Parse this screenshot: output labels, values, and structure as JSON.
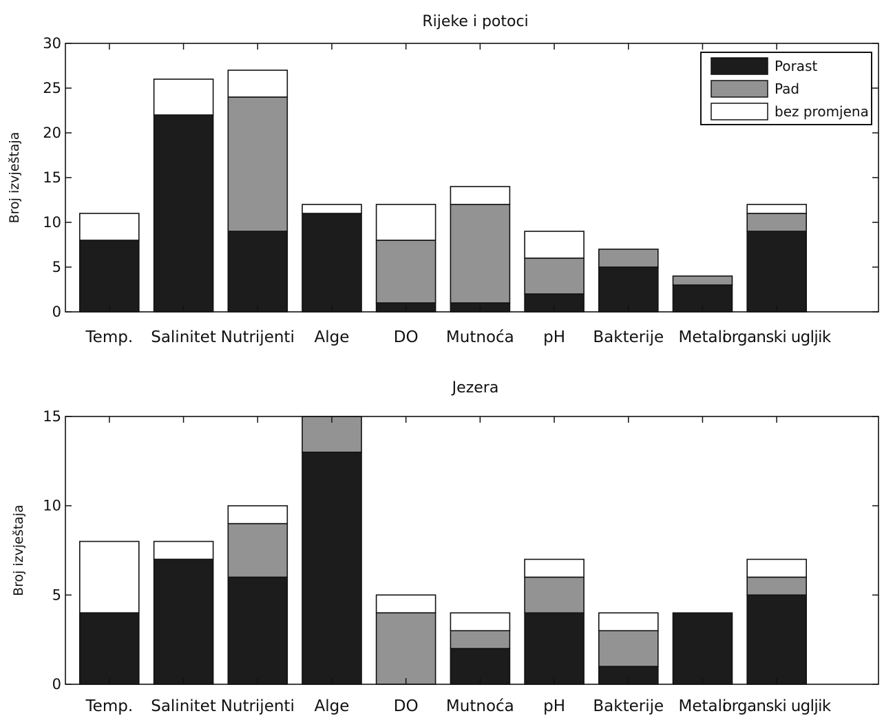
{
  "chart_data": [
    {
      "type": "bar",
      "stacked": true,
      "title": "Rijeke i potoci",
      "xlabel": "",
      "ylabel": "Broj izvještaja",
      "ylim": [
        0,
        30
      ],
      "yticks": [
        0,
        5,
        10,
        15,
        20,
        25,
        30
      ],
      "grid": false,
      "legend_position": "top-right",
      "categories": [
        "Temp.",
        "Salinitet",
        "Nutrijenti",
        "Alge",
        "DO",
        "Mutnoća",
        "pH",
        "Bakterije",
        "Metali",
        "organski ugljik"
      ],
      "series": [
        {
          "name": "Porast",
          "color": "#1c1c1c",
          "values": [
            8,
            22,
            9,
            11,
            1,
            1,
            2,
            5,
            3,
            9
          ]
        },
        {
          "name": "Pad",
          "color": "#939393",
          "values": [
            0,
            0,
            15,
            0,
            7,
            11,
            4,
            2,
            1,
            2
          ]
        },
        {
          "name": "bez promjena",
          "color": "#ffffff",
          "values": [
            3,
            4,
            3,
            1,
            4,
            2,
            3,
            0,
            0,
            1
          ]
        }
      ]
    },
    {
      "type": "bar",
      "stacked": true,
      "title": "Jezera",
      "xlabel": "",
      "ylabel": "Broj izvještaja",
      "ylim": [
        0,
        15
      ],
      "yticks": [
        0,
        5,
        10,
        15
      ],
      "grid": false,
      "legend_position": "none",
      "categories": [
        "Temp.",
        "Salinitet",
        "Nutrijenti",
        "Alge",
        "DO",
        "Mutnoća",
        "pH",
        "Bakterije",
        "Metali",
        "organski ugljik"
      ],
      "series": [
        {
          "name": "Porast",
          "color": "#1c1c1c",
          "values": [
            4,
            7,
            6,
            13,
            0,
            2,
            4,
            1,
            4,
            5
          ]
        },
        {
          "name": "Pad",
          "color": "#939393",
          "values": [
            0,
            0,
            3,
            2,
            4,
            1,
            2,
            2,
            0,
            1
          ]
        },
        {
          "name": "bez promjena",
          "color": "#ffffff",
          "values": [
            4,
            1,
            1,
            0,
            1,
            1,
            1,
            1,
            0,
            1
          ]
        }
      ]
    }
  ]
}
